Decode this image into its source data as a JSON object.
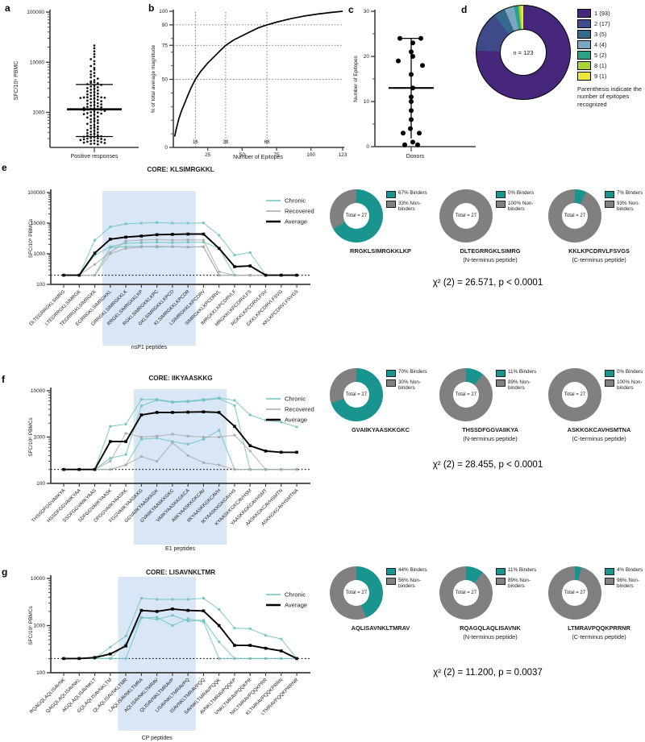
{
  "colors": {
    "chronic": "#6ec3bc",
    "recovered": "#a9a9a9",
    "average": "#000000",
    "binder_teal": "#1a948e",
    "nonbinder_gray": "#808080",
    "shade_blue": "#cfe0f2",
    "axis": "#3d3d3d"
  },
  "chart_data": [
    {
      "id": "a",
      "panel_letter": "a",
      "type": "scatter",
      "ylabel": "SFC/10⁶ PBMC",
      "xlabel": "Positive responses",
      "yscale": "log",
      "ylim": [
        200,
        100000
      ],
      "yticks": [
        1000,
        10000,
        100000
      ],
      "median": 1150,
      "whisker_low": 330,
      "whisker_high": 3600,
      "values": [
        230,
        235,
        240,
        245,
        250,
        255,
        260,
        265,
        270,
        275,
        280,
        285,
        290,
        295,
        300,
        305,
        310,
        318,
        326,
        334,
        342,
        352,
        362,
        374,
        386,
        398,
        412,
        428,
        444,
        462,
        480,
        500,
        520,
        542,
        565,
        590,
        615,
        640,
        668,
        696,
        726,
        758,
        790,
        825,
        860,
        898,
        925,
        945,
        965,
        990,
        1010,
        1040,
        1070,
        1100,
        1120,
        1140,
        1160,
        1180,
        1200,
        1230,
        1260,
        1290,
        1320,
        1360,
        1400,
        1440,
        1480,
        1520,
        1570,
        1620,
        1670,
        1720,
        1780,
        1840,
        1900,
        1940,
        1960,
        1980,
        1990,
        2000,
        2060,
        2130,
        2200,
        2280,
        2360,
        2450,
        2540,
        2630,
        2730,
        2830,
        2940,
        3050,
        3160,
        3280,
        3400,
        3530,
        3660,
        3800,
        3900,
        3980,
        4150,
        4400,
        4700,
        5000,
        5300,
        5700,
        6100,
        6600,
        7100,
        7700,
        8400,
        9200,
        10500,
        11500,
        12800,
        14500,
        16500,
        19000,
        21500
      ]
    },
    {
      "id": "b",
      "panel_letter": "b",
      "type": "line",
      "ylabel": "% of total average magnitude",
      "xlabel": "Number of Epitopes",
      "ylim": [
        0,
        100
      ],
      "xlim": [
        0,
        123
      ],
      "ytick_labels": [
        0,
        50,
        75,
        90,
        100
      ],
      "xticks": [
        25,
        50,
        75,
        100,
        123
      ],
      "guide_h": [
        50,
        75,
        90
      ],
      "guide_v": [
        16,
        38,
        68
      ],
      "points": [
        [
          1,
          8
        ],
        [
          2,
          13
        ],
        [
          3,
          17
        ],
        [
          4,
          21
        ],
        [
          6,
          27
        ],
        [
          8,
          32
        ],
        [
          10,
          37
        ],
        [
          13,
          44
        ],
        [
          16,
          50
        ],
        [
          20,
          56
        ],
        [
          25,
          62
        ],
        [
          30,
          67
        ],
        [
          34,
          71
        ],
        [
          38,
          75
        ],
        [
          44,
          79
        ],
        [
          50,
          82
        ],
        [
          56,
          85
        ],
        [
          62,
          88
        ],
        [
          68,
          90
        ],
        [
          75,
          92
        ],
        [
          85,
          94.5
        ],
        [
          95,
          96.5
        ],
        [
          105,
          98
        ],
        [
          115,
          99.2
        ],
        [
          123,
          100
        ]
      ]
    },
    {
      "id": "c",
      "panel_letter": "c",
      "type": "scatter",
      "ylabel": "Number of Epitopes",
      "xlabel": "Donors",
      "ylim": [
        0,
        30
      ],
      "yticks": [
        0,
        10,
        20,
        30
      ],
      "median": 13,
      "whisker_low": 1.8,
      "whisker_high": 24,
      "points": [
        [
          -14,
          24
        ],
        [
          12,
          24
        ],
        [
          2,
          23
        ],
        [
          0,
          21
        ],
        [
          2,
          20
        ],
        [
          -16,
          19
        ],
        [
          14,
          18
        ],
        [
          0,
          16
        ],
        [
          2,
          13
        ],
        [
          0,
          11
        ],
        [
          0,
          10
        ],
        [
          0,
          8
        ],
        [
          0,
          6
        ],
        [
          -1,
          4
        ],
        [
          -10,
          3
        ],
        [
          10,
          3
        ],
        [
          2,
          1
        ],
        [
          -8,
          0.4
        ],
        [
          8,
          0.4
        ]
      ]
    },
    {
      "id": "d",
      "panel_letter": "d",
      "type": "pie",
      "center_label": "n = 123",
      "note": "Parenthesis indicate the number of epitopes recognized",
      "total": 123,
      "slices": [
        {
          "label": "1  (93)",
          "value": 93,
          "color": "#46277c"
        },
        {
          "label": "2  (17)",
          "value": 17,
          "color": "#3e4a89"
        },
        {
          "label": "3  (5)",
          "value": 5,
          "color": "#35698d"
        },
        {
          "label": "4  (4)",
          "value": 4,
          "color": "#7ba7c2"
        },
        {
          "label": "5  (2)",
          "value": 2,
          "color": "#2aa287"
        },
        {
          "label": "8  (1)",
          "value": 1,
          "color": "#a8d434"
        },
        {
          "label": "9  (1)",
          "value": 1,
          "color": "#ede73b"
        }
      ]
    },
    {
      "id": "e",
      "panel_letter": "e",
      "type": "line",
      "title": "CORE: KLSIMRGKKL",
      "ylabel": "SFC/10⁶ PBMCs",
      "xlabel": "nsP1 peptides",
      "yscale": "log",
      "ylim": [
        100,
        100000
      ],
      "yticks": [
        100,
        1000,
        10000,
        100000
      ],
      "threshold": 200,
      "highlight_range": [
        3,
        8
      ],
      "legend": [
        "Chronic",
        "Recovered",
        "Average"
      ],
      "categories": [
        "DLTEGRRGKLSIMRG",
        "LTEGRRGKLSIMRGK",
        "TEGRRGKLSIMRGKK",
        "EGRRGKLSIMRGKKL",
        "GRRGKLSIMRGKKLK",
        "RRGKLSIMRGKKLKP",
        "RGKLSIMRGKKLKPC",
        "GKLSIMRGKKLKPCD",
        "KLSIMRGKKLKPCDR",
        "LSIMRGKKLKPCDRV",
        "SIMRGKKLKPCDRVL",
        "IMRGKKLKPCDRVLF",
        "MRGKKLKPCDRVLFS",
        "RGKKLKPCDRVLFSV",
        "GKKLKPCDRVLFSVG",
        "KKLKPCDRVLFSVGS"
      ],
      "series": [
        {
          "name": "Chronic",
          "color": "chronic",
          "values": [
            200,
            200,
            2800,
            7500,
            9500,
            10000,
            10500,
            10000,
            10000,
            10200,
            4000,
            900,
            1100,
            200,
            200,
            200
          ]
        },
        {
          "name": "Chronic",
          "color": "chronic",
          "values": [
            200,
            200,
            900,
            1700,
            2200,
            2300,
            2400,
            2300,
            2400,
            2400,
            1500,
            200,
            200,
            200,
            200,
            200
          ]
        },
        {
          "name": "Chronic",
          "color": "chronic",
          "values": [
            200,
            200,
            200,
            1600,
            1700,
            1750,
            1650,
            1700,
            1650,
            1700,
            200,
            200,
            200,
            200,
            200,
            200
          ]
        },
        {
          "name": "Recovered",
          "color": "recovered",
          "values": [
            200,
            200,
            450,
            1100,
            2600,
            2800,
            2900,
            2800,
            2850,
            2800,
            260,
            200,
            200,
            200,
            200,
            200
          ]
        },
        {
          "name": "Recovered",
          "color": "recovered",
          "values": [
            200,
            200,
            200,
            1000,
            1500,
            1650,
            1750,
            1700,
            1650,
            1700,
            200,
            200,
            200,
            200,
            200,
            200
          ]
        },
        {
          "name": "Average",
          "color": "average",
          "values": [
            200,
            200,
            1050,
            3000,
            3500,
            3800,
            4200,
            4300,
            4400,
            4400,
            1500,
            380,
            400,
            200,
            200,
            200
          ]
        }
      ]
    },
    {
      "id": "f",
      "panel_letter": "f",
      "type": "line",
      "title": "CORE: IIKYAASKKG",
      "ylabel": "SFC/10⁶ PBMCs",
      "xlabel": "E1 peptides",
      "yscale": "log",
      "ylim": [
        100,
        10000
      ],
      "yticks": [
        100,
        1000,
        10000
      ],
      "threshold": 200,
      "highlight_range": [
        5,
        10
      ],
      "legend": [
        "Chronic",
        "Recovered",
        "Average"
      ],
      "categories": [
        "THSSDFGGVAIIKYA",
        "HSSDFGGVAIIKYAA",
        "SSDFGGVAIIKYAAS",
        "SDFGGVAIIKYAASK",
        "DFGGVAIIKYAASKK",
        "FGGVAIIKYAASKKG",
        "GGVAIIKYAASKKGK",
        "GVAIIKYAASKKGKC",
        "VAIIKYAASKKGKCA",
        "AIIKYAASKKGKCAV",
        "IIKYAASKKGKCAVH",
        "IKYAASKKGKCAVHS",
        "KYAASKKGKCAVHSM",
        "YAASKKGKCAVHSMT",
        "AASKKGKCAVHSMTN",
        "ASKKGKCAVHSMTNA"
      ],
      "series": [
        {
          "name": "Chronic",
          "color": "chronic",
          "values": [
            200,
            200,
            200,
            1700,
            1900,
            6500,
            6500,
            5800,
            6000,
            6500,
            7000,
            6200,
            3000,
            2300,
            2100,
            1650
          ]
        },
        {
          "name": "Chronic",
          "color": "chronic",
          "values": [
            200,
            200,
            200,
            350,
            420,
            4700,
            6300,
            5600,
            5800,
            6200,
            6800,
            4800,
            200,
            200,
            200,
            200
          ]
        },
        {
          "name": "Chronic",
          "color": "chronic",
          "values": [
            200,
            200,
            200,
            200,
            250,
            900,
            950,
            800,
            700,
            900,
            1400,
            200,
            200,
            200,
            200,
            200
          ]
        },
        {
          "name": "Recovered",
          "color": "recovered",
          "values": [
            200,
            200,
            200,
            300,
            1200,
            1000,
            1050,
            1150,
            1050,
            1000,
            1000,
            1100,
            500,
            200,
            200,
            200
          ]
        },
        {
          "name": "Recovered",
          "color": "recovered",
          "values": [
            200,
            200,
            200,
            200,
            250,
            380,
            300,
            750,
            400,
            280,
            250,
            200,
            200,
            200,
            200,
            200
          ]
        },
        {
          "name": "Average",
          "color": "average",
          "values": [
            200,
            200,
            200,
            800,
            800,
            3000,
            3400,
            3400,
            3450,
            3500,
            3400,
            1700,
            650,
            500,
            470,
            470
          ]
        }
      ]
    },
    {
      "id": "g",
      "panel_letter": "g",
      "type": "line",
      "title": "CORE: LISAVNKLTMR",
      "ylabel": "SFC/10⁶ PBMCs",
      "xlabel": "CP peptides",
      "yscale": "log",
      "ylim": [
        100,
        10000
      ],
      "yticks": [
        100,
        1000,
        10000
      ],
      "threshold": 200,
      "highlight_range": [
        4,
        8
      ],
      "legend": [
        "Chronic",
        "Average"
      ],
      "categories": [
        "RQAGQLAQLISAVNK",
        "QAGQLAQLISAVNKL",
        "AGQLAQLISAVNKLT",
        "GQLAQLISAVNKLTM",
        "QLAQLISAVNKLTMR",
        "LAQLISAVNKLTMRA",
        "AQLISAVNKLTMRAV",
        "QLISAVNKLTMRAVP",
        "LISAVNKLTMRAVPQ",
        "ISAVNKLTMRAVPQQ",
        "SAVNKLTMRAVPQQK",
        "AVNKLTMRAVPQQKP",
        "VNKLTMRAVPQQKPR",
        "NKLTMRAVPQQKPRR",
        "KLTMRAVPQQKPRRN",
        "LTMRAVPQQKPRRNR"
      ],
      "series": [
        {
          "name": "Chronic",
          "color": "chronic",
          "values": [
            200,
            200,
            200,
            350,
            600,
            3800,
            3600,
            3600,
            3600,
            3800,
            2200,
            880,
            860,
            620,
            520,
            200
          ]
        },
        {
          "name": "Chronic",
          "color": "chronic",
          "values": [
            200,
            200,
            200,
            200,
            420,
            1500,
            1350,
            1650,
            1250,
            1300,
            450,
            200,
            200,
            200,
            200,
            200
          ]
        },
        {
          "name": "Chronic",
          "color": "chronic",
          "values": [
            200,
            200,
            200,
            200,
            200,
            1450,
            1500,
            1000,
            1400,
            1200,
            200,
            200,
            200,
            200,
            200,
            200
          ]
        },
        {
          "name": "Average",
          "color": "average",
          "values": [
            200,
            200,
            210,
            250,
            370,
            2100,
            2000,
            2250,
            2100,
            2050,
            1000,
            380,
            380,
            330,
            290,
            200
          ]
        }
      ]
    }
  ],
  "binder_groups": [
    {
      "panel": "e",
      "chi_text": "χ² (2) = 26.571, p < 0.0001",
      "donuts": [
        {
          "pct_binders": 67,
          "legend_binders": "67% Binders",
          "legend_nonbinders": "33% Non-binders",
          "total_label": "Total = 27",
          "caption": "RRGKLSIMRGKKLKP",
          "subcaption": ""
        },
        {
          "pct_binders": 0,
          "legend_binders": "0% Binders",
          "legend_nonbinders": "100% Non-binders",
          "total_label": "Total = 27",
          "caption": "DLTEGRRGKLSIMRG",
          "subcaption": "(N-terminus peptide)"
        },
        {
          "pct_binders": 7,
          "legend_binders": "7% Binders",
          "legend_nonbinders": "93% Non-binders",
          "total_label": "Total = 27",
          "caption": "KKLKPCDRVLFSVGS",
          "subcaption": "(C-terminus peptide)"
        }
      ]
    },
    {
      "panel": "f",
      "chi_text": "χ² (2) = 28.455, p < 0.0001",
      "donuts": [
        {
          "pct_binders": 70,
          "legend_binders": "70% Binders",
          "legend_nonbinders": "30% Non-binders",
          "total_label": "Total = 27",
          "caption": "GVAIIKYAASKKGKC",
          "subcaption": ""
        },
        {
          "pct_binders": 11,
          "legend_binders": "11% Binders",
          "legend_nonbinders": "89% Non-binders",
          "total_label": "Total = 27",
          "caption": "THSSDFGGVAIIKYA",
          "subcaption": "(N-terminus peptide)"
        },
        {
          "pct_binders": 0,
          "legend_binders": "0% Binders",
          "legend_nonbinders": "100% Non-binders",
          "total_label": "Total = 27",
          "caption": "ASKKGKCAVHSMTNA",
          "subcaption": "(C-terminus peptide)"
        }
      ]
    },
    {
      "panel": "g",
      "chi_text": "χ² (2) = 11.200, p = 0.0037",
      "donuts": [
        {
          "pct_binders": 44,
          "legend_binders": "44% Binders",
          "legend_nonbinders": "56% Non-binders",
          "total_label": "Total = 27",
          "caption": "AQLISAVNKLTMRAV",
          "subcaption": ""
        },
        {
          "pct_binders": 11,
          "legend_binders": "11% Binders",
          "legend_nonbinders": "89% Non-binders",
          "total_label": "Total = 27",
          "caption": "RQAGQLAQLISAVNK",
          "subcaption": "(N-terminus peptide)"
        },
        {
          "pct_binders": 4,
          "legend_binders": "4% Binders",
          "legend_nonbinders": "96% Non-binders",
          "total_label": "Total = 27",
          "caption": "LTMRAVPQQKPRRNR",
          "subcaption": "(C-terminus peptide)"
        }
      ]
    }
  ]
}
